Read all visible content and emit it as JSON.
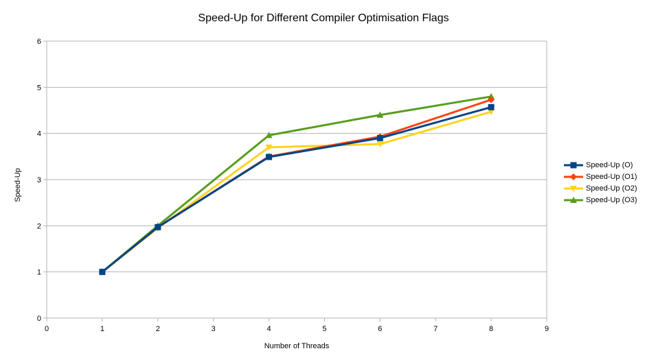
{
  "chart_data": {
    "type": "line",
    "title": "Speed-Up for Different Compiler Optimisation Flags",
    "xlabel": "Number of Threads",
    "ylabel": "Speed-Up",
    "xlim": [
      0,
      9
    ],
    "ylim": [
      0,
      6
    ],
    "x_ticks": [
      0,
      1,
      2,
      3,
      4,
      5,
      6,
      7,
      8,
      9
    ],
    "y_ticks": [
      0,
      1,
      2,
      3,
      4,
      5,
      6
    ],
    "grid": true,
    "legend_position": "right",
    "x": [
      1,
      2,
      4,
      6,
      8
    ],
    "series": [
      {
        "name": "Speed-Up (O)",
        "values": [
          1.0,
          1.97,
          3.49,
          3.9,
          4.57
        ],
        "color": "#004586",
        "marker": "square"
      },
      {
        "name": "Speed-Up (O1)",
        "values": [
          1.0,
          1.97,
          3.5,
          3.93,
          4.73
        ],
        "color": "#ff420e",
        "marker": "diamond"
      },
      {
        "name": "Speed-Up (O2)",
        "values": [
          1.0,
          1.95,
          3.7,
          3.77,
          4.47
        ],
        "color": "#ffd320",
        "marker": "triangle-down"
      },
      {
        "name": "Speed-Up (O3)",
        "values": [
          1.0,
          2.0,
          3.96,
          4.4,
          4.8
        ],
        "color": "#579d1c",
        "marker": "triangle-up"
      }
    ]
  }
}
